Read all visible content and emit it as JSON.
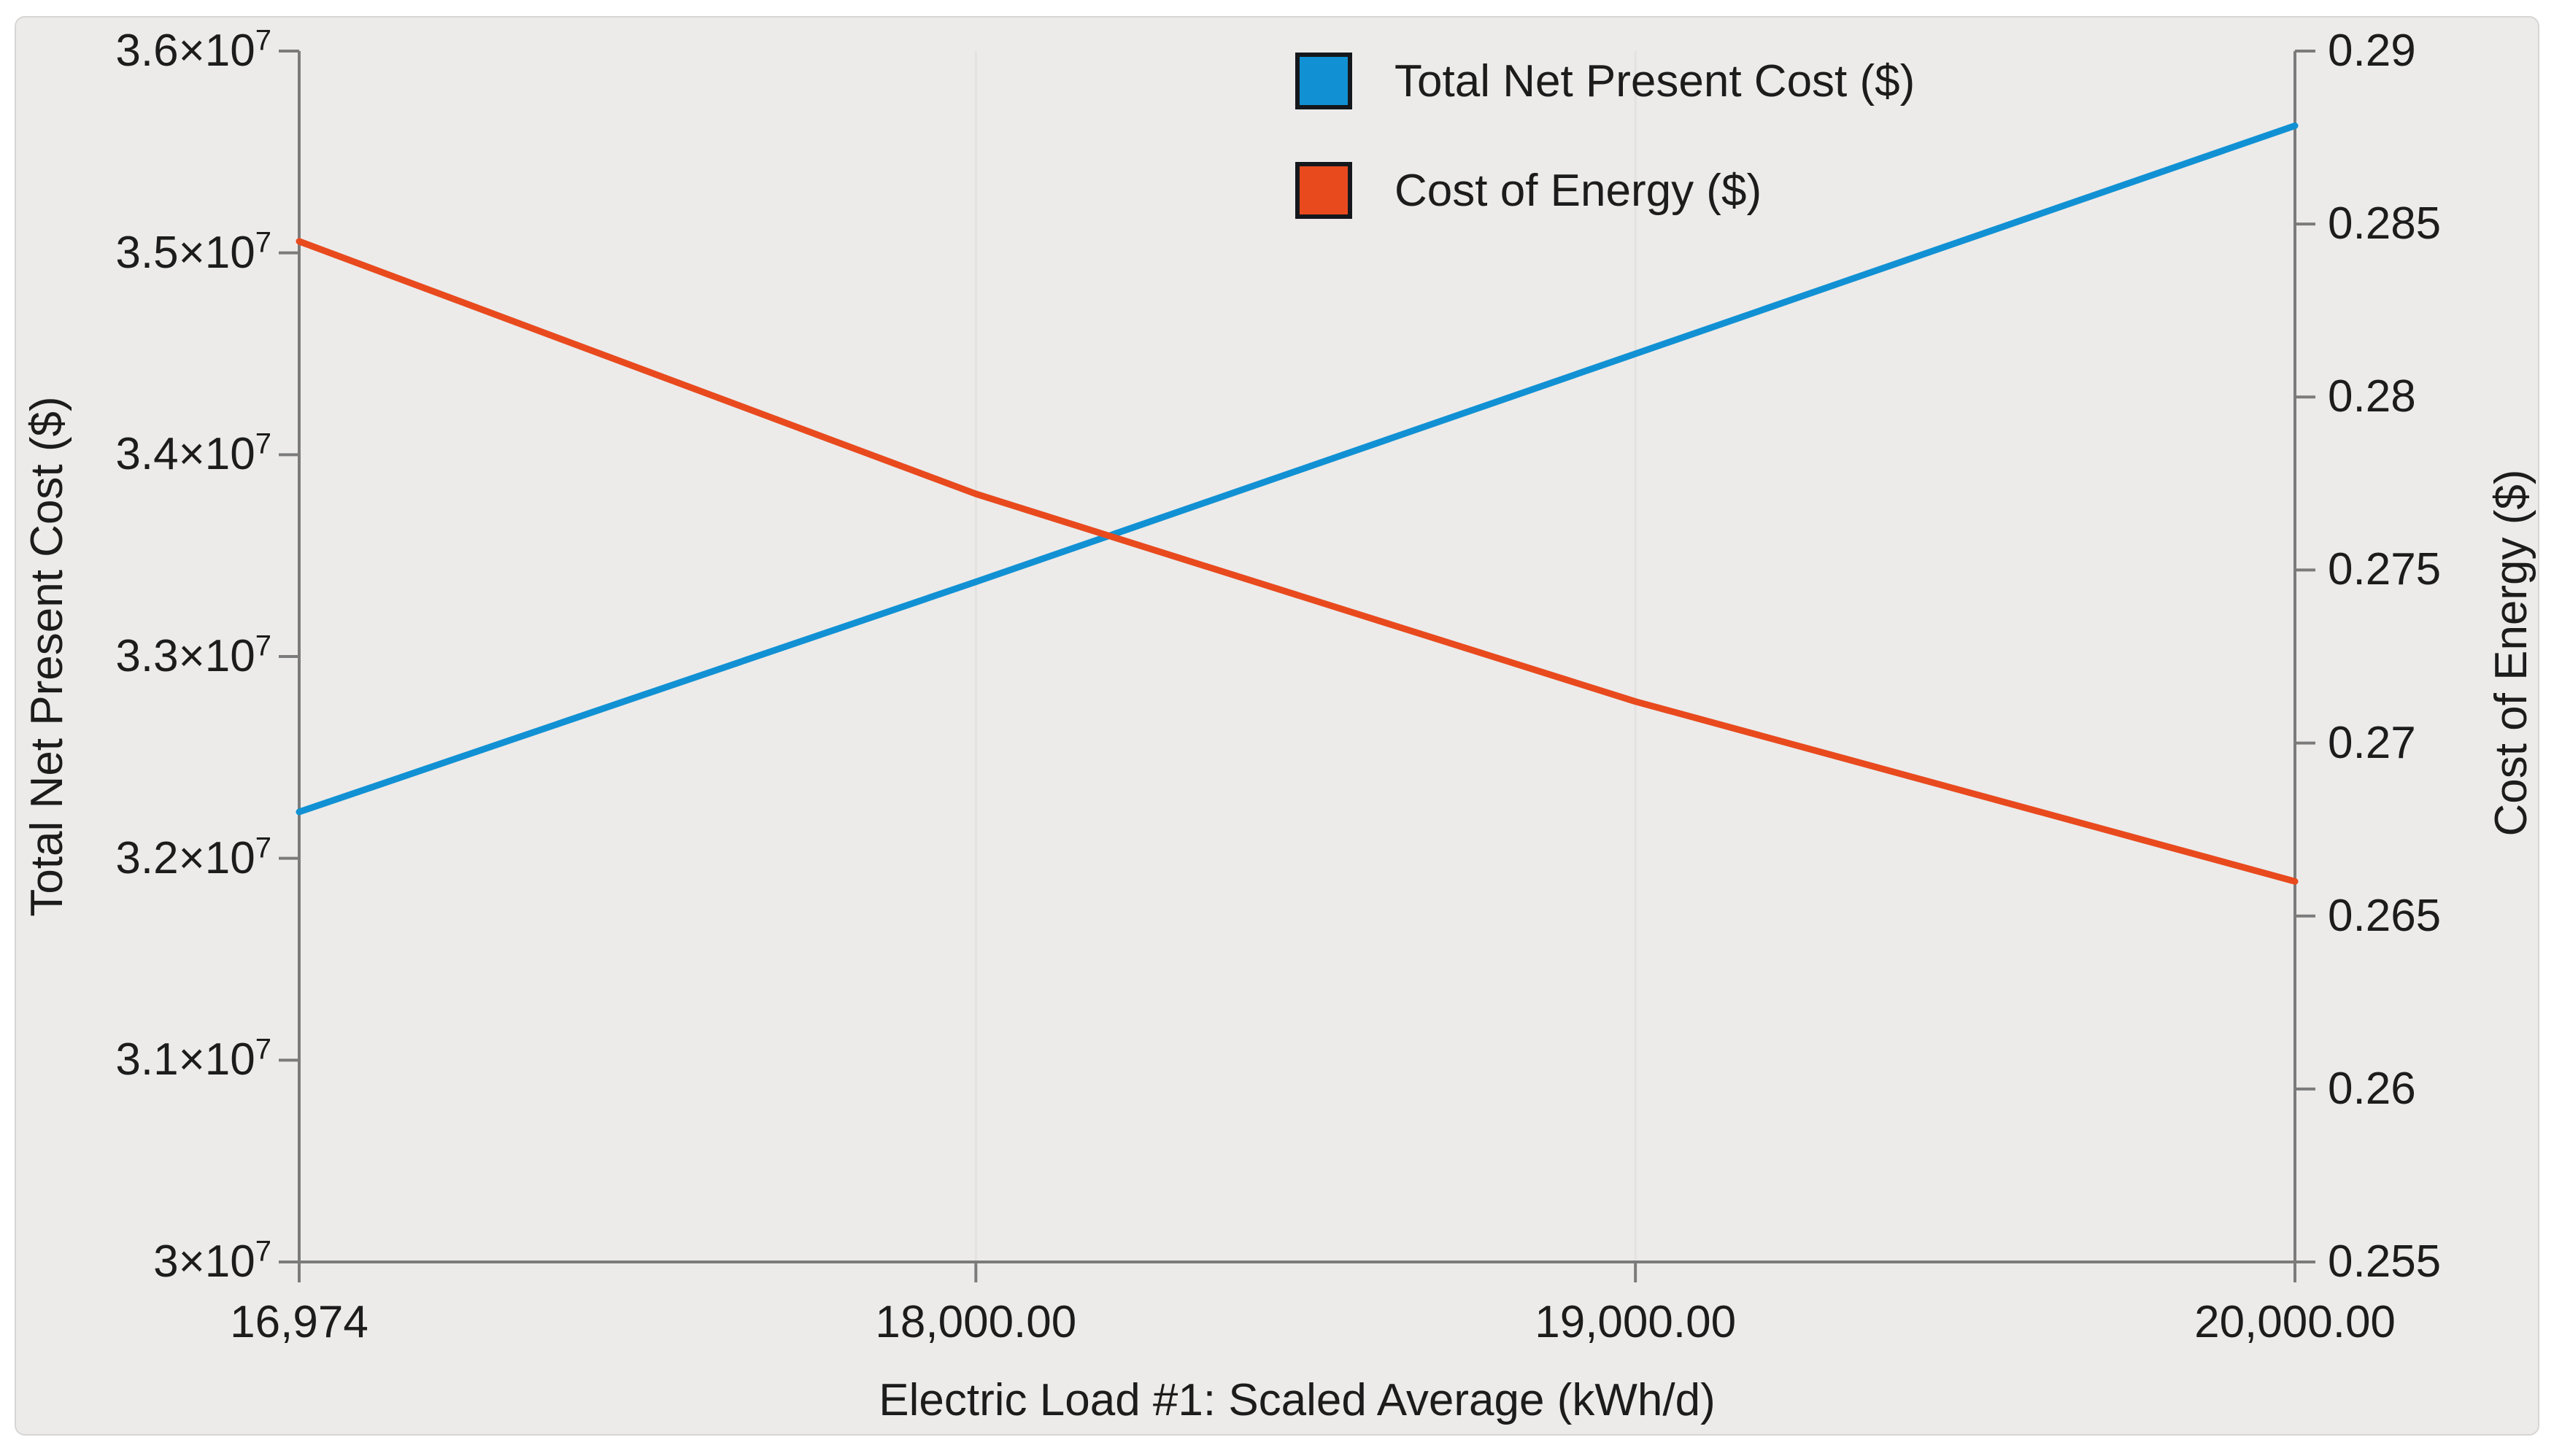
{
  "page": {
    "background": "#ffffff",
    "panel_background": "#ecebea",
    "axis_color": "#7b7b7b",
    "gridline_color": "#e3e2e0",
    "text_color": "#1c1c1c"
  },
  "legend": {
    "items": [
      {
        "label": "Total Net Present Cost ($)",
        "color": "#1191d3"
      },
      {
        "label": "Cost of Energy ($)",
        "color": "#e84a1e"
      }
    ]
  },
  "axes": {
    "x": {
      "title": "Electric Load #1: Scaled Average (kWh/d)",
      "min": 16974,
      "max": 20000,
      "ticks": [
        {
          "value": 16974,
          "label": "16,974",
          "grid": false
        },
        {
          "value": 18000,
          "label": "18,000.00",
          "grid": true
        },
        {
          "value": 19000,
          "label": "19,000.00",
          "grid": true
        },
        {
          "value": 20000,
          "label": "20,000.00",
          "grid": false
        }
      ]
    },
    "y_left": {
      "title": "Total Net Present Cost ($)",
      "min": 30000000,
      "max": 36000000,
      "ticks": [
        {
          "value": 30000000,
          "base": "3×10",
          "sup": "7"
        },
        {
          "value": 31000000,
          "base": "3.1×10",
          "sup": "7"
        },
        {
          "value": 32000000,
          "base": "3.2×10",
          "sup": "7"
        },
        {
          "value": 33000000,
          "base": "3.3×10",
          "sup": "7"
        },
        {
          "value": 34000000,
          "base": "3.4×10",
          "sup": "7"
        },
        {
          "value": 35000000,
          "base": "3.5×10",
          "sup": "7"
        },
        {
          "value": 36000000,
          "base": "3.6×10",
          "sup": "7"
        }
      ]
    },
    "y_right": {
      "title": "Cost of Energy ($)",
      "min": 0.255,
      "max": 0.29,
      "ticks": [
        {
          "value": 0.255,
          "label": "0.255"
        },
        {
          "value": 0.26,
          "label": "0.26"
        },
        {
          "value": 0.265,
          "label": "0.265"
        },
        {
          "value": 0.27,
          "label": "0.27"
        },
        {
          "value": 0.275,
          "label": "0.275"
        },
        {
          "value": 0.28,
          "label": "0.28"
        },
        {
          "value": 0.285,
          "label": "0.285"
        },
        {
          "value": 0.29,
          "label": "0.29"
        }
      ]
    }
  },
  "chart_data": {
    "type": "line",
    "title": "",
    "xlabel": "Electric Load #1: Scaled Average (kWh/d)",
    "ylabel_left": "Total Net Present Cost ($)",
    "ylabel_right": "Cost of Energy ($)",
    "x": [
      16974,
      18000,
      19000,
      20000
    ],
    "xlim": [
      16974,
      20000
    ],
    "ylim_left": [
      30000000,
      36000000
    ],
    "ylim_right": [
      0.255,
      0.29
    ],
    "x_gridlines": [
      18000,
      19000
    ],
    "legend_position": "top-center",
    "series": [
      {
        "name": "Total Net Present Cost ($)",
        "yaxis": "left",
        "color": "#1191d3",
        "values": [
          32230000,
          33370000,
          34500000,
          35630000
        ]
      },
      {
        "name": "Cost of Energy ($)",
        "yaxis": "right",
        "color": "#e84a1e",
        "values": [
          0.2845,
          0.2772,
          0.2712,
          0.266
        ]
      }
    ]
  }
}
